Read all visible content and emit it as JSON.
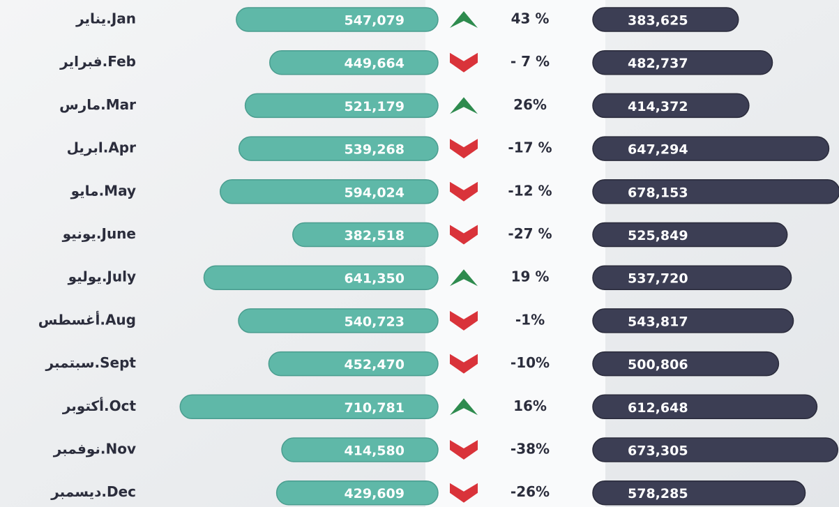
{
  "chart_data": {
    "type": "butterfly-bar",
    "categories": [
      "يناير.Jan",
      "فبراير.Feb",
      "مارس.Mar",
      "ابريل.Apr",
      "مايو.May",
      "يونيو.June",
      "يوليو.July",
      "أغسطس.Aug",
      "سبتمبر.Sept",
      "أكتوبر.Oct",
      "نوفمبر.Nov",
      "ديسمبر.Dec"
    ],
    "series": [
      {
        "color": "#5fb8a8",
        "values": [
          547079,
          449664,
          521179,
          539268,
          594024,
          382518,
          641350,
          540723,
          452470,
          710781,
          414580,
          429609
        ],
        "value_labels": [
          "547,079",
          "449,664",
          "521,179",
          "539,268",
          "594,024",
          "382,518",
          "641,350",
          "540,723",
          "452,470",
          "710,781",
          "414,580",
          "429,609"
        ]
      },
      {
        "color": "#3c3e54",
        "values": [
          383625,
          482737,
          414372,
          647294,
          678153,
          525849,
          537720,
          543817,
          500806,
          612648,
          673305,
          578285
        ],
        "value_labels": [
          "383,625",
          "482,737",
          "414,372",
          "647,294",
          "678,153",
          "525,849",
          "537,720",
          "543,817",
          "500,806",
          "612,648",
          "673,305",
          "578,285"
        ]
      }
    ],
    "change": {
      "values": [
        43,
        -7,
        26,
        -17,
        -12,
        -27,
        19,
        -1,
        -10,
        16,
        -38,
        -26
      ],
      "value_labels": [
        "43 %",
        "- 7 %",
        "26%",
        "-17 %",
        "-12 %",
        "-27 %",
        "19 %",
        "-1%",
        "-10%",
        "16%",
        "-38%",
        "-26%"
      ],
      "up_color": "#2e8b4e",
      "down_color": "#d9333a"
    }
  }
}
